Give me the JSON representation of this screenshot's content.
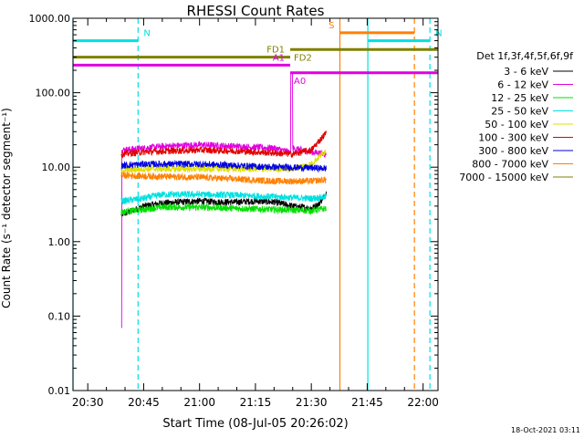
{
  "chart_data": {
    "type": "line",
    "title": "RHESSI Count Rates",
    "xlabel": "Start Time (08-Jul-05 20:26:02)",
    "ylabel": "Count Rate (s⁻¹ detector segment⁻¹)",
    "yscale": "log",
    "ylim": [
      0.01,
      1000
    ],
    "xlim": [
      "20:26:02",
      "22:04"
    ],
    "y_ticks": [
      "0.01",
      "0.10",
      "1.00",
      "10.00",
      "100.00",
      "1000.00"
    ],
    "x_ticks": [
      "20:30",
      "20:45",
      "21:00",
      "21:15",
      "21:30",
      "21:45",
      "22:00"
    ],
    "legend_title": "Det 1f,3f,4f,5f,6f,9f",
    "legend_placement": "right",
    "footer": "18-Oct-2021 03:11",
    "series": [
      {
        "name": "3 - 6 keV",
        "color": "#000000",
        "values": [
          [
            "20:39",
            2.3
          ],
          [
            "20:42",
            2.6
          ],
          [
            "20:45",
            3.0
          ],
          [
            "20:50",
            3.3
          ],
          [
            "20:55",
            3.4
          ],
          [
            "21:00",
            3.5
          ],
          [
            "21:05",
            3.4
          ],
          [
            "21:10",
            3.4
          ],
          [
            "21:15",
            3.5
          ],
          [
            "21:20",
            3.4
          ],
          [
            "21:25",
            3.0
          ],
          [
            "21:30",
            2.8
          ],
          [
            "21:32",
            3.2
          ],
          [
            "21:34",
            4.5
          ]
        ]
      },
      {
        "name": "6 - 12 keV",
        "color": "#e000e0",
        "values": [
          [
            "20:39",
            0.07
          ],
          [
            "20:39:10",
            17
          ],
          [
            "20:45",
            18
          ],
          [
            "20:50",
            19
          ],
          [
            "21:00",
            20
          ],
          [
            "21:10",
            19
          ],
          [
            "21:20",
            18
          ],
          [
            "21:24",
            16
          ],
          [
            "21:24:30",
            190
          ],
          [
            "21:25",
            18
          ],
          [
            "21:30",
            16
          ],
          [
            "21:34",
            15
          ]
        ]
      },
      {
        "name": "12 - 25 keV",
        "color": "#00e000",
        "values": [
          [
            "20:39",
            2.5
          ],
          [
            "20:45",
            2.7
          ],
          [
            "20:50",
            2.9
          ],
          [
            "21:00",
            2.9
          ],
          [
            "21:10",
            2.8
          ],
          [
            "21:20",
            2.7
          ],
          [
            "21:30",
            2.6
          ],
          [
            "21:34",
            2.8
          ]
        ]
      },
      {
        "name": "25 - 50 keV",
        "color": "#00e0e0",
        "values": [
          [
            "20:39",
            3.5
          ],
          [
            "20:45",
            3.8
          ],
          [
            "20:50",
            4.3
          ],
          [
            "21:00",
            4.3
          ],
          [
            "21:10",
            4.2
          ],
          [
            "21:20",
            4.0
          ],
          [
            "21:30",
            3.8
          ],
          [
            "21:34",
            4.0
          ]
        ]
      },
      {
        "name": "50 - 100 keV",
        "color": "#e0e000",
        "values": [
          [
            "20:39",
            9.0
          ],
          [
            "20:45",
            9.5
          ],
          [
            "21:00",
            9.5
          ],
          [
            "21:15",
            9.5
          ],
          [
            "21:25",
            9.5
          ],
          [
            "21:30",
            11
          ],
          [
            "21:34",
            17
          ]
        ]
      },
      {
        "name": "100 - 300 keV",
        "color": "#e00000",
        "values": [
          [
            "20:39",
            15
          ],
          [
            "20:45",
            16
          ],
          [
            "21:00",
            17
          ],
          [
            "21:10",
            16.5
          ],
          [
            "21:20",
            15.5
          ],
          [
            "21:25",
            15
          ],
          [
            "21:30",
            17
          ],
          [
            "21:34",
            29
          ]
        ]
      },
      {
        "name": "300 - 800 keV",
        "color": "#0000e0",
        "values": [
          [
            "20:39",
            10.5
          ],
          [
            "20:45",
            11
          ],
          [
            "21:00",
            11
          ],
          [
            "21:10",
            10.5
          ],
          [
            "21:20",
            10
          ],
          [
            "21:30",
            9.8
          ],
          [
            "21:34",
            9.6
          ]
        ]
      },
      {
        "name": "800 - 7000 keV",
        "color": "#ff8000",
        "values": [
          [
            "20:39",
            7.8
          ],
          [
            "20:45",
            7.6
          ],
          [
            "21:00",
            7.3
          ],
          [
            "21:10",
            6.9
          ],
          [
            "21:20",
            6.5
          ],
          [
            "21:30",
            6.5
          ],
          [
            "21:34",
            6.8
          ]
        ]
      },
      {
        "name": "7000 - 15000 keV",
        "color": "#808000",
        "values": []
      }
    ],
    "annotations": {
      "intervals": [
        {
          "label": "N",
          "color": "#00e0e0",
          "y": 500,
          "start": "20:26:02",
          "end": "20:43:30"
        },
        {
          "label": "N",
          "color": "#00e0e0",
          "y": 500,
          "start": "21:45:10",
          "end": "22:01:50"
        },
        {
          "label": "FD1",
          "color": "#808000",
          "y": 300,
          "start": "20:26:02",
          "end": "21:24:20"
        },
        {
          "label": "FD2",
          "color": "#808000",
          "y": 380,
          "start": "21:24:20",
          "end": "22:04"
        },
        {
          "label": "A1",
          "color": "#e000e0",
          "y": 235,
          "start": "20:26:02",
          "end": "21:24:20"
        },
        {
          "label": "A0",
          "color": "#e000e0",
          "y": 185,
          "start": "21:24:20",
          "end": "22:04"
        },
        {
          "label": "S",
          "color": "#ff8000",
          "y": 640,
          "start": "21:37:40",
          "end": "21:57:40"
        }
      ],
      "vertical_lines": [
        {
          "time": "20:26:02",
          "color": "#00e0e0",
          "dashed": false
        },
        {
          "time": "20:43:30",
          "color": "#00e0e0",
          "dashed": true
        },
        {
          "time": "21:37:40",
          "color": "#ff8000",
          "dashed": false
        },
        {
          "time": "21:45:10",
          "color": "#00e0e0",
          "dashed": false
        },
        {
          "time": "21:57:40",
          "color": "#ff8000",
          "dashed": true
        },
        {
          "time": "22:01:50",
          "color": "#00e0e0",
          "dashed": true
        }
      ]
    }
  }
}
